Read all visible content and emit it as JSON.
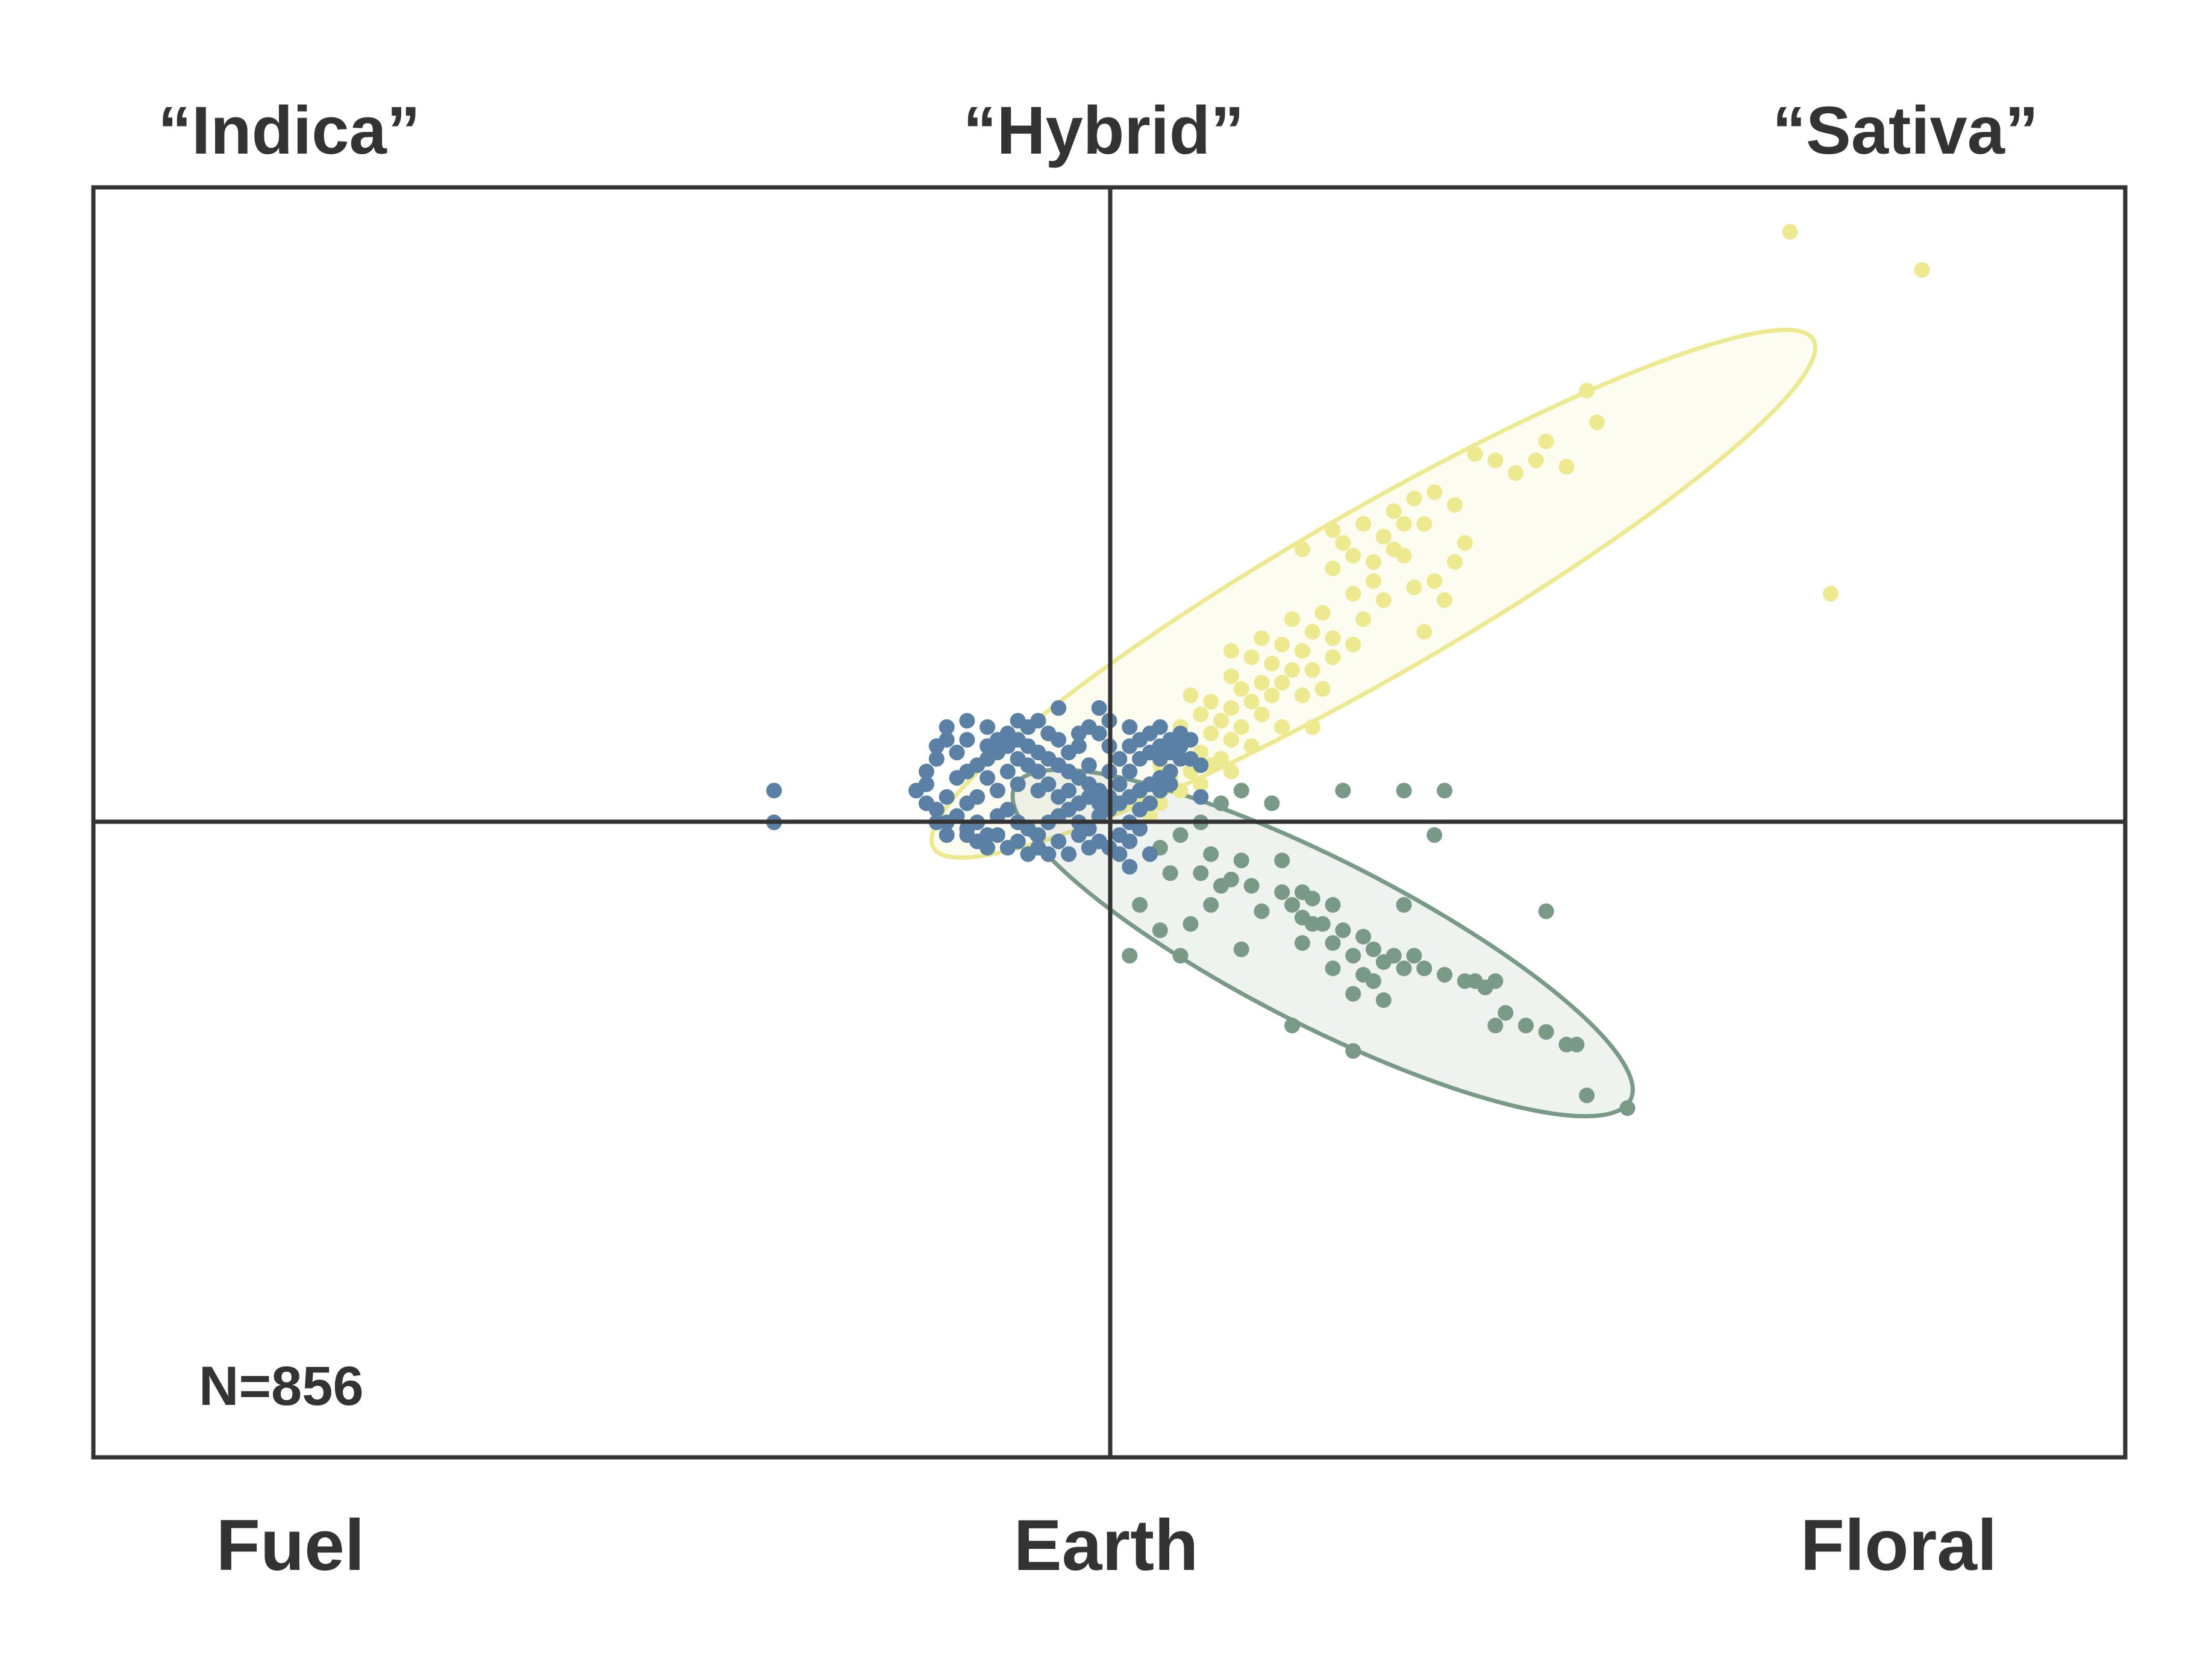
{
  "chart_data": {
    "type": "scatter",
    "title": "",
    "xlabel": "",
    "ylabel": "",
    "xlim": [
      -1,
      1
    ],
    "ylim": [
      -1,
      1
    ],
    "grid": false,
    "top_labels": [
      "“Indica”",
      "“Hybrid”",
      "“Sativa”"
    ],
    "bottom_labels": [
      "Fuel",
      "Earth",
      "Floral"
    ],
    "annotation": "N=856",
    "colors": {
      "frame": "#333333",
      "yellow": "#ede98e",
      "green": "#789a86",
      "blue": "#5a80a6"
    },
    "ellipses": [
      {
        "color": "#ede98e",
        "cx": 0.26,
        "cy": 0.36,
        "rx": 0.5,
        "ry": 0.13,
        "angle_deg": 30
      },
      {
        "color": "#789a86",
        "cx": 0.21,
        "cy": -0.19,
        "rx": 0.34,
        "ry": 0.13,
        "angle_deg": -27
      }
    ],
    "series": [
      {
        "color": "#ede98e",
        "points": [
          [
            0.67,
            0.93
          ],
          [
            0.8,
            0.87
          ],
          [
            0.71,
            0.36
          ],
          [
            0.47,
            0.68
          ],
          [
            0.48,
            0.63
          ],
          [
            0.42,
            0.57
          ],
          [
            0.38,
            0.57
          ],
          [
            0.32,
            0.52
          ],
          [
            0.3,
            0.51
          ],
          [
            0.34,
            0.5
          ],
          [
            0.28,
            0.49
          ],
          [
            0.29,
            0.47
          ],
          [
            0.25,
            0.47
          ],
          [
            0.22,
            0.46
          ],
          [
            0.31,
            0.47
          ],
          [
            0.27,
            0.45
          ],
          [
            0.23,
            0.44
          ],
          [
            0.19,
            0.43
          ],
          [
            0.28,
            0.43
          ],
          [
            0.24,
            0.42
          ],
          [
            0.26,
            0.41
          ],
          [
            0.34,
            0.41
          ],
          [
            0.22,
            0.4
          ],
          [
            0.32,
            0.38
          ],
          [
            0.3,
            0.37
          ],
          [
            0.24,
            0.36
          ],
          [
            0.27,
            0.35
          ],
          [
            0.21,
            0.33
          ],
          [
            0.18,
            0.32
          ],
          [
            0.25,
            0.32
          ],
          [
            0.2,
            0.3
          ],
          [
            0.15,
            0.29
          ],
          [
            0.17,
            0.28
          ],
          [
            0.19,
            0.27
          ],
          [
            0.22,
            0.26
          ],
          [
            0.14,
            0.26
          ],
          [
            0.16,
            0.25
          ],
          [
            0.18,
            0.24
          ],
          [
            0.2,
            0.24
          ],
          [
            0.12,
            0.23
          ],
          [
            0.15,
            0.22
          ],
          [
            0.17,
            0.22
          ],
          [
            0.13,
            0.21
          ],
          [
            0.16,
            0.2
          ],
          [
            0.14,
            0.19
          ],
          [
            0.1,
            0.19
          ],
          [
            0.12,
            0.18
          ],
          [
            0.15,
            0.17
          ],
          [
            0.09,
            0.17
          ],
          [
            0.11,
            0.16
          ],
          [
            0.13,
            0.15
          ],
          [
            0.17,
            0.15
          ],
          [
            0.07,
            0.15
          ],
          [
            0.1,
            0.14
          ],
          [
            0.12,
            0.13
          ],
          [
            0.08,
            0.13
          ],
          [
            0.14,
            0.12
          ],
          [
            0.06,
            0.12
          ],
          [
            0.09,
            0.11
          ],
          [
            0.11,
            0.1
          ],
          [
            0.07,
            0.1
          ],
          [
            0.1,
            0.09
          ],
          [
            0.05,
            0.09
          ],
          [
            0.08,
            0.08
          ],
          [
            0.12,
            0.08
          ],
          [
            0.06,
            0.07
          ],
          [
            0.09,
            0.06
          ],
          [
            0.04,
            0.06
          ],
          [
            0.07,
            0.05
          ],
          [
            0.03,
            0.04
          ],
          [
            0.05,
            0.03
          ],
          [
            0.02,
            0.03
          ],
          [
            0.04,
            0.01
          ],
          [
            0.22,
            0.29
          ],
          [
            0.21,
            0.21
          ],
          [
            0.33,
            0.35
          ],
          [
            0.36,
            0.58
          ],
          [
            0.4,
            0.55
          ],
          [
            0.29,
            0.42
          ],
          [
            0.26,
            0.38
          ],
          [
            0.24,
            0.28
          ],
          [
            0.19,
            0.2
          ],
          [
            0.08,
            0.2
          ],
          [
            0.12,
            0.27
          ],
          [
            0.43,
            0.6
          ],
          [
            0.45,
            0.56
          ],
          [
            0.35,
            0.44
          ],
          [
            0.31,
            0.3
          ],
          [
            0.2,
            0.15
          ],
          [
            0.02,
            0.08
          ]
        ]
      },
      {
        "color": "#789a86",
        "points": [
          [
            0.23,
            0.05
          ],
          [
            0.29,
            0.05
          ],
          [
            0.13,
            0.05
          ],
          [
            0.16,
            0.03
          ],
          [
            0.11,
            0.03
          ],
          [
            0.09,
            0.0
          ],
          [
            0.07,
            -0.02
          ],
          [
            0.05,
            -0.04
          ],
          [
            0.1,
            -0.05
          ],
          [
            0.13,
            -0.06
          ],
          [
            0.17,
            -0.06
          ],
          [
            0.06,
            -0.08
          ],
          [
            0.09,
            -0.08
          ],
          [
            0.12,
            -0.09
          ],
          [
            0.14,
            -0.1
          ],
          [
            0.11,
            -0.1
          ],
          [
            0.17,
            -0.11
          ],
          [
            0.19,
            -0.11
          ],
          [
            0.2,
            -0.12
          ],
          [
            0.18,
            -0.13
          ],
          [
            0.22,
            -0.13
          ],
          [
            0.29,
            -0.13
          ],
          [
            0.15,
            -0.14
          ],
          [
            0.19,
            -0.15
          ],
          [
            0.2,
            -0.16
          ],
          [
            0.21,
            -0.16
          ],
          [
            0.23,
            -0.17
          ],
          [
            0.25,
            -0.18
          ],
          [
            0.19,
            -0.19
          ],
          [
            0.22,
            -0.19
          ],
          [
            0.26,
            -0.2
          ],
          [
            0.24,
            -0.21
          ],
          [
            0.28,
            -0.21
          ],
          [
            0.3,
            -0.21
          ],
          [
            0.27,
            -0.22
          ],
          [
            0.29,
            -0.23
          ],
          [
            0.31,
            -0.23
          ],
          [
            0.33,
            -0.24
          ],
          [
            0.22,
            -0.23
          ],
          [
            0.25,
            -0.24
          ],
          [
            0.35,
            -0.25
          ],
          [
            0.26,
            -0.25
          ],
          [
            0.36,
            -0.25
          ],
          [
            0.37,
            -0.26
          ],
          [
            0.38,
            -0.25
          ],
          [
            0.27,
            -0.28
          ],
          [
            0.24,
            -0.27
          ],
          [
            0.39,
            -0.3
          ],
          [
            0.38,
            -0.32
          ],
          [
            0.41,
            -0.32
          ],
          [
            0.43,
            -0.33
          ],
          [
            0.18,
            -0.32
          ],
          [
            0.24,
            -0.36
          ],
          [
            0.45,
            -0.35
          ],
          [
            0.46,
            -0.35
          ],
          [
            0.47,
            -0.43
          ],
          [
            0.51,
            -0.45
          ],
          [
            0.43,
            -0.14
          ],
          [
            0.32,
            -0.02
          ],
          [
            0.33,
            0.05
          ],
          [
            0.02,
            -0.21
          ],
          [
            0.05,
            -0.17
          ],
          [
            0.08,
            -0.16
          ],
          [
            0.07,
            -0.21
          ],
          [
            0.13,
            -0.2
          ],
          [
            0.03,
            -0.13
          ],
          [
            0.1,
            -0.13
          ]
        ]
      },
      {
        "color": "#5a80a6",
        "points": [
          [
            -0.33,
            0.05
          ],
          [
            -0.33,
            0.0
          ],
          [
            -0.19,
            0.05
          ],
          [
            -0.17,
            0.1
          ],
          [
            -0.18,
            0.06
          ],
          [
            -0.16,
            0.04
          ],
          [
            -0.17,
            0.02
          ],
          [
            -0.15,
            0.01
          ],
          [
            -0.16,
            0.0
          ],
          [
            -0.14,
            -0.01
          ],
          [
            -0.12,
            -0.02
          ],
          [
            -0.13,
            0.0
          ],
          [
            -0.11,
            0.01
          ],
          [
            -0.1,
            0.02
          ],
          [
            -0.09,
            0.0
          ],
          [
            -0.08,
            -0.01
          ],
          [
            -0.07,
            -0.02
          ],
          [
            -0.06,
            0.0
          ],
          [
            -0.05,
            0.01
          ],
          [
            -0.04,
            0.02
          ],
          [
            -0.03,
            0.0
          ],
          [
            -0.02,
            -0.01
          ],
          [
            -0.01,
            0.01
          ],
          [
            0.0,
            0.02
          ],
          [
            0.01,
            0.03
          ],
          [
            0.02,
            0.04
          ],
          [
            0.03,
            0.05
          ],
          [
            0.04,
            0.06
          ],
          [
            0.05,
            0.07
          ],
          [
            0.06,
            0.08
          ],
          [
            -0.15,
            0.07
          ],
          [
            -0.14,
            0.08
          ],
          [
            -0.13,
            0.09
          ],
          [
            -0.12,
            0.1
          ],
          [
            -0.11,
            0.11
          ],
          [
            -0.1,
            0.12
          ],
          [
            -0.09,
            0.13
          ],
          [
            -0.08,
            0.12
          ],
          [
            -0.07,
            0.11
          ],
          [
            -0.06,
            0.1
          ],
          [
            -0.05,
            0.09
          ],
          [
            -0.04,
            0.08
          ],
          [
            -0.03,
            0.07
          ],
          [
            -0.02,
            0.06
          ],
          [
            -0.01,
            0.05
          ],
          [
            0.0,
            0.04
          ],
          [
            0.01,
            0.06
          ],
          [
            0.02,
            0.08
          ],
          [
            0.03,
            0.1
          ],
          [
            0.04,
            0.11
          ],
          [
            0.05,
            0.12
          ],
          [
            0.06,
            0.13
          ],
          [
            0.0,
            0.12
          ],
          [
            -0.01,
            0.14
          ],
          [
            -0.05,
            0.18
          ],
          [
            -0.01,
            0.18
          ],
          [
            -0.14,
            0.16
          ],
          [
            -0.12,
            0.15
          ],
          [
            -0.1,
            0.14
          ],
          [
            -0.08,
            0.15
          ],
          [
            -0.06,
            0.14
          ],
          [
            -0.16,
            0.13
          ],
          [
            -0.15,
            0.11
          ],
          [
            -0.13,
            0.04
          ],
          [
            -0.11,
            0.05
          ],
          [
            -0.09,
            0.06
          ],
          [
            -0.07,
            0.05
          ],
          [
            -0.05,
            0.04
          ],
          [
            -0.03,
            0.03
          ],
          [
            -0.01,
            0.03
          ],
          [
            -0.12,
            0.07
          ],
          [
            -0.1,
            0.08
          ],
          [
            -0.08,
            0.09
          ],
          [
            -0.06,
            0.06
          ],
          [
            -0.04,
            0.05
          ],
          [
            -0.02,
            0.04
          ],
          [
            -0.13,
            -0.03
          ],
          [
            -0.11,
            -0.02
          ],
          [
            -0.09,
            -0.03
          ],
          [
            -0.07,
            -0.04
          ],
          [
            -0.05,
            -0.03
          ],
          [
            -0.03,
            -0.02
          ],
          [
            -0.01,
            -0.03
          ],
          [
            0.01,
            -0.02
          ],
          [
            0.02,
            0.0
          ],
          [
            0.03,
            0.02
          ],
          [
            -0.14,
            0.03
          ],
          [
            -0.12,
            0.12
          ],
          [
            -0.09,
            0.1
          ],
          [
            -0.07,
            0.08
          ],
          [
            -0.04,
            0.11
          ],
          [
            -0.02,
            0.09
          ],
          [
            0.0,
            0.08
          ],
          [
            0.01,
            0.1
          ],
          [
            0.02,
            0.12
          ],
          [
            0.03,
            0.13
          ],
          [
            0.04,
            0.14
          ],
          [
            0.05,
            0.1
          ],
          [
            0.06,
            0.11
          ],
          [
            0.07,
            0.12
          ],
          [
            0.07,
            0.1
          ],
          [
            0.06,
            0.06
          ],
          [
            0.05,
            0.05
          ],
          [
            0.04,
            0.03
          ],
          [
            0.03,
            -0.01
          ],
          [
            0.02,
            -0.03
          ],
          [
            0.01,
            -0.05
          ],
          [
            0.0,
            -0.04
          ],
          [
            -0.02,
            -0.04
          ],
          [
            -0.04,
            -0.05
          ],
          [
            -0.06,
            -0.05
          ],
          [
            -0.08,
            -0.05
          ],
          [
            -0.1,
            -0.04
          ],
          [
            -0.12,
            -0.04
          ],
          [
            -0.14,
            -0.02
          ],
          [
            -0.16,
            -0.02
          ],
          [
            -0.17,
            0.0
          ],
          [
            -0.18,
            0.03
          ],
          [
            -0.18,
            0.08
          ],
          [
            -0.17,
            0.12
          ],
          [
            -0.16,
            0.15
          ],
          [
            -0.14,
            0.13
          ],
          [
            -0.11,
            0.13
          ],
          [
            -0.09,
            0.16
          ],
          [
            -0.07,
            0.16
          ],
          [
            -0.05,
            0.13
          ],
          [
            -0.03,
            0.12
          ],
          [
            -0.02,
            0.15
          ],
          [
            0.0,
            0.16
          ],
          [
            0.02,
            0.15
          ],
          [
            0.05,
            0.15
          ],
          [
            0.07,
            0.14
          ],
          [
            0.08,
            0.13
          ],
          [
            0.08,
            0.1
          ],
          [
            0.09,
            0.09
          ],
          [
            0.04,
            -0.05
          ],
          [
            0.02,
            -0.07
          ],
          [
            0.09,
            0.04
          ],
          [
            -0.03,
            0.14
          ]
        ]
      }
    ]
  }
}
